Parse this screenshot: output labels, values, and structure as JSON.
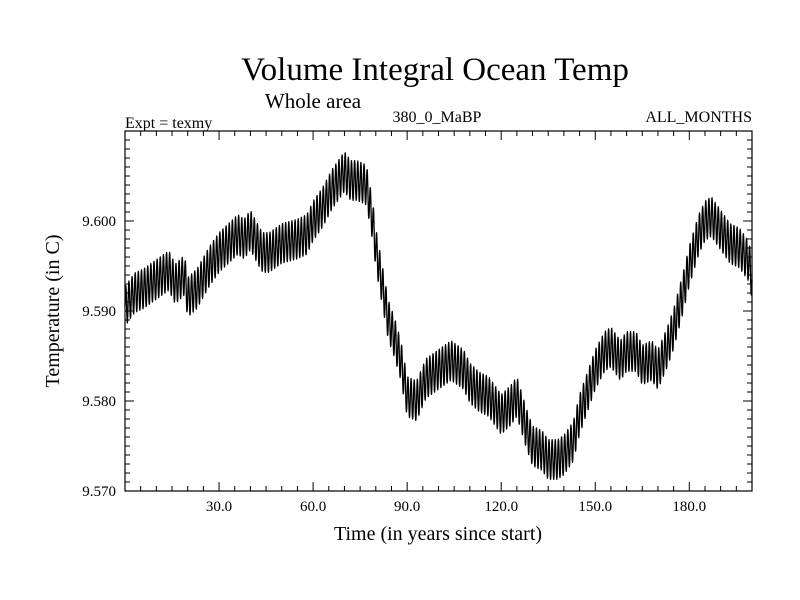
{
  "chart_data": {
    "type": "line",
    "title": "Volume Integral Ocean Temp",
    "subtitle": "Whole area",
    "left_label": "Expt = texmy",
    "center_label": "380_0_MaBP",
    "right_label": "ALL_MONTHS",
    "xlabel": "Time (in years since start)",
    "ylabel": "Temperature (in C)",
    "xlim": [
      0,
      200
    ],
    "ylim": [
      9.57,
      9.61
    ],
    "x_ticks": [
      30,
      60,
      90,
      120,
      150,
      180
    ],
    "x_tick_labels": [
      "30.0",
      "60.0",
      "90.0",
      "120.0",
      "150.0",
      "180.0"
    ],
    "y_ticks": [
      9.57,
      9.58,
      9.59,
      9.6
    ],
    "y_tick_labels": [
      "9.570",
      "9.580",
      "9.590",
      "9.600"
    ],
    "seasonal_amplitude": 0.0022,
    "series": [
      {
        "name": "Volume Integral Ocean Temp",
        "color": "#000000",
        "x": [
          0,
          3,
          6,
          10,
          14,
          16,
          19,
          20,
          23,
          27,
          30,
          33,
          36,
          38,
          40,
          43,
          44,
          46,
          50,
          55,
          58,
          60,
          63,
          66,
          69,
          70,
          72,
          74,
          77,
          79,
          80,
          82,
          84,
          86,
          88,
          90,
          93,
          96,
          100,
          104,
          108,
          110,
          113,
          116,
          120,
          123,
          125,
          128,
          130,
          133,
          135,
          138,
          140,
          143,
          145,
          148,
          150,
          153,
          155,
          158,
          160,
          163,
          165,
          168,
          170,
          173,
          175,
          178,
          180,
          183,
          185,
          187,
          190,
          193,
          196,
          199,
          200
        ],
        "y": [
          9.5905,
          9.592,
          9.5925,
          9.5935,
          9.5945,
          9.593,
          9.594,
          9.5915,
          9.5925,
          9.595,
          9.5965,
          9.5975,
          9.5985,
          9.598,
          9.599,
          9.597,
          9.5965,
          9.5965,
          9.5975,
          9.598,
          9.5985,
          9.6,
          9.6015,
          9.6035,
          9.605,
          9.6055,
          9.6045,
          9.6045,
          9.604,
          9.6,
          9.597,
          9.593,
          9.589,
          9.587,
          9.5845,
          9.5805,
          9.58,
          9.5825,
          9.5835,
          9.5845,
          9.5835,
          9.582,
          9.581,
          9.5805,
          9.5785,
          9.5795,
          9.5805,
          9.577,
          9.575,
          9.5745,
          9.5735,
          9.5735,
          9.574,
          9.5755,
          9.5785,
          9.5815,
          9.5835,
          9.5855,
          9.586,
          9.5845,
          9.5855,
          9.5855,
          9.584,
          9.5845,
          9.5835,
          9.586,
          9.588,
          9.592,
          9.595,
          9.5985,
          9.6,
          9.6005,
          9.599,
          9.5975,
          9.597,
          9.5955,
          9.5935
        ]
      }
    ]
  }
}
